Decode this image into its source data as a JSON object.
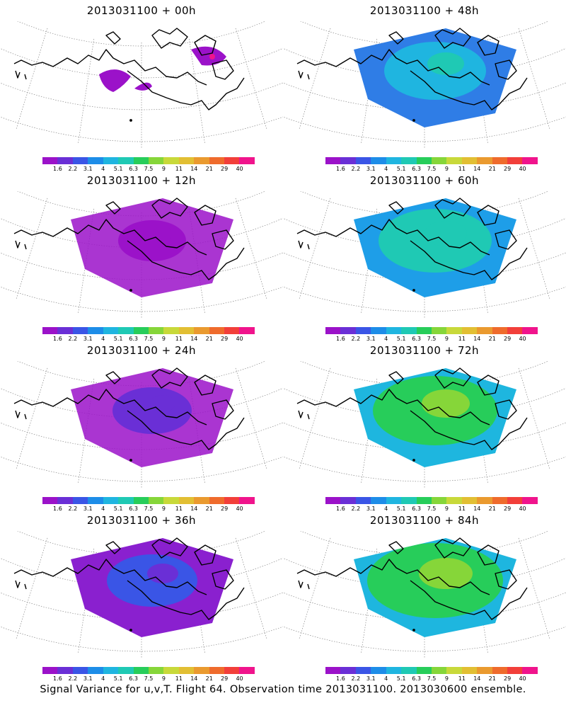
{
  "caption": "Signal Variance for u,v,T. Flight 64. Observation time 2013031100. 2013030600 ensemble.",
  "colorbar": {
    "labels": [
      "1.6",
      "2.2",
      "3.1",
      "4",
      "5.1",
      "6.3",
      "7.5",
      "9",
      "11",
      "14",
      "21",
      "29",
      "40"
    ],
    "colors": [
      "#9b12c9",
      "#6a2fd6",
      "#3a55e6",
      "#1d8de8",
      "#1fb5e0",
      "#1fc9b4",
      "#27cd5a",
      "#86d639",
      "#c8d93a",
      "#e2bf33",
      "#ea9a2f",
      "#ef6b2c",
      "#f23f3a",
      "#f0148c"
    ]
  },
  "panels": [
    {
      "title": "2013031100 + 00h",
      "level": 0
    },
    {
      "title": "2013031100 + 48h",
      "level": 4
    },
    {
      "title": "2013031100 + 12h",
      "level": 1
    },
    {
      "title": "2013031100 + 60h",
      "level": 5
    },
    {
      "title": "2013031100 + 24h",
      "level": 2
    },
    {
      "title": "2013031100 + 72h",
      "level": 6
    },
    {
      "title": "2013031100 + 36h",
      "level": 3
    },
    {
      "title": "2013031100 + 84h",
      "level": 7
    }
  ]
}
